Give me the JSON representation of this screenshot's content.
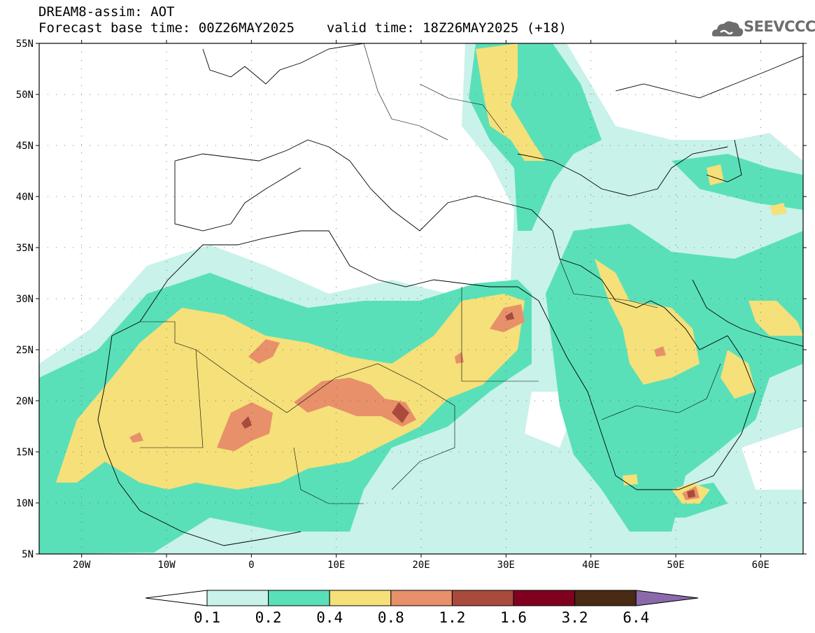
{
  "header": {
    "title": "DREAM8-assim: AOT",
    "forecast_base": "Forecast base time: 00Z26MAY2025",
    "valid_time": "valid time: 18Z26MAY2025 (+18)",
    "logo_text": "SEEVCCC"
  },
  "map": {
    "lon_range": [
      -25,
      65
    ],
    "lat_range": [
      5,
      55
    ],
    "y_ticks": [
      "55N",
      "50N",
      "45N",
      "40N",
      "35N",
      "30N",
      "25N",
      "20N",
      "15N",
      "10N",
      "5N"
    ],
    "x_ticks": [
      "20W",
      "10W",
      "0",
      "10E",
      "20E",
      "30E",
      "40E",
      "50E",
      "60E"
    ]
  },
  "legend": {
    "labels": [
      "0.1",
      "0.2",
      "0.4",
      "0.8",
      "1.2",
      "1.6",
      "3.2",
      "6.4"
    ],
    "colors": [
      "#c8f2ea",
      "#5ae0b8",
      "#f5e07a",
      "#e8906a",
      "#a84a3c",
      "#800020",
      "#4a2a14",
      "#8a6aaa"
    ]
  }
}
